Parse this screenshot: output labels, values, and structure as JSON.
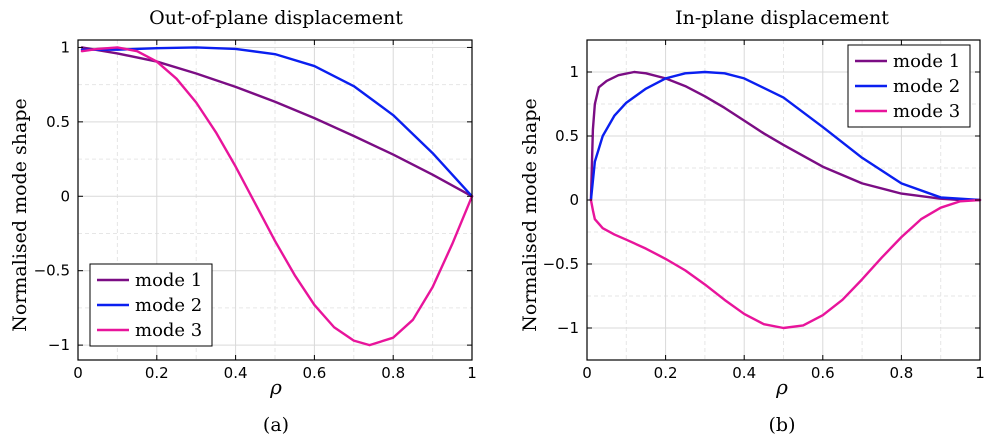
{
  "chart_data": [
    {
      "type": "line",
      "panel_label": "(a)",
      "title": "Out-of-plane displacement",
      "xlabel": "ρ",
      "ylabel": "Normalised mode shape",
      "xlim": [
        0,
        1
      ],
      "ylim": [
        -1.1,
        1.05
      ],
      "xticks": [
        0,
        0.2,
        0.4,
        0.6,
        0.8,
        1
      ],
      "xtick_labels": [
        "0",
        "0.2",
        "0.4",
        "0.6",
        "0.8",
        "1"
      ],
      "yticks": [
        -1,
        -0.5,
        0,
        0.5,
        1
      ],
      "ytick_labels": [
        "−1",
        "−0.5",
        "0",
        "0.5",
        "1"
      ],
      "grid": true,
      "legend_position": "bottom-left",
      "series": [
        {
          "name": "mode 1",
          "color": "#7b0d84",
          "x": [
            0.01,
            0.1,
            0.2,
            0.3,
            0.4,
            0.5,
            0.6,
            0.7,
            0.8,
            0.9,
            1.0
          ],
          "y": [
            1.0,
            0.96,
            0.905,
            0.825,
            0.735,
            0.635,
            0.525,
            0.405,
            0.28,
            0.145,
            0.0
          ]
        },
        {
          "name": "mode 2",
          "color": "#0a1ff0",
          "x": [
            0.01,
            0.1,
            0.2,
            0.3,
            0.4,
            0.5,
            0.6,
            0.7,
            0.8,
            0.9,
            1.0
          ],
          "y": [
            0.985,
            0.985,
            0.995,
            1.0,
            0.99,
            0.955,
            0.875,
            0.74,
            0.545,
            0.29,
            0.0
          ]
        },
        {
          "name": "mode 3",
          "color": "#e8149b",
          "x": [
            0.01,
            0.05,
            0.1,
            0.15,
            0.2,
            0.25,
            0.3,
            0.35,
            0.4,
            0.45,
            0.5,
            0.55,
            0.6,
            0.65,
            0.7,
            0.74,
            0.8,
            0.85,
            0.9,
            0.95,
            1.0
          ],
          "y": [
            0.975,
            0.99,
            1.0,
            0.975,
            0.905,
            0.79,
            0.63,
            0.43,
            0.2,
            -0.05,
            -0.3,
            -0.53,
            -0.73,
            -0.88,
            -0.97,
            -1.0,
            -0.95,
            -0.83,
            -0.61,
            -0.32,
            0.0
          ]
        }
      ]
    },
    {
      "type": "line",
      "panel_label": "(b)",
      "title": "In-plane displacement",
      "xlabel": "ρ",
      "ylabel": "Normalised mode shape",
      "xlim": [
        0,
        1
      ],
      "ylim": [
        -1.25,
        1.25
      ],
      "xticks": [
        0,
        0.2,
        0.4,
        0.6,
        0.8,
        1
      ],
      "xtick_labels": [
        "0",
        "0.2",
        "0.4",
        "0.6",
        "0.8",
        "1"
      ],
      "yticks": [
        -1,
        -0.5,
        0,
        0.5,
        1
      ],
      "ytick_labels": [
        "−1",
        "−0.5",
        "0",
        "0.5",
        "1"
      ],
      "grid": true,
      "legend_position": "top-right",
      "series": [
        {
          "name": "mode 1",
          "color": "#7b0d84",
          "x": [
            0.01,
            0.015,
            0.02,
            0.03,
            0.05,
            0.08,
            0.12,
            0.15,
            0.2,
            0.25,
            0.3,
            0.35,
            0.4,
            0.45,
            0.5,
            0.6,
            0.7,
            0.8,
            0.9,
            0.95,
            1.0
          ],
          "y": [
            0.0,
            0.55,
            0.75,
            0.88,
            0.93,
            0.975,
            1.0,
            0.99,
            0.95,
            0.89,
            0.81,
            0.72,
            0.62,
            0.52,
            0.43,
            0.26,
            0.13,
            0.05,
            0.01,
            0.0,
            0.0
          ]
        },
        {
          "name": "mode 2",
          "color": "#0a1ff0",
          "x": [
            0.01,
            0.02,
            0.04,
            0.07,
            0.1,
            0.15,
            0.2,
            0.25,
            0.3,
            0.35,
            0.4,
            0.5,
            0.6,
            0.7,
            0.8,
            0.9,
            1.0
          ],
          "y": [
            0.0,
            0.3,
            0.5,
            0.66,
            0.76,
            0.87,
            0.95,
            0.99,
            1.0,
            0.99,
            0.95,
            0.8,
            0.57,
            0.33,
            0.13,
            0.02,
            0.0
          ]
        },
        {
          "name": "mode 3",
          "color": "#e8149b",
          "x": [
            0.01,
            0.015,
            0.02,
            0.04,
            0.07,
            0.1,
            0.15,
            0.2,
            0.25,
            0.3,
            0.35,
            0.4,
            0.45,
            0.5,
            0.55,
            0.6,
            0.65,
            0.7,
            0.75,
            0.8,
            0.85,
            0.9,
            0.95,
            1.0
          ],
          "y": [
            0.0,
            -0.08,
            -0.15,
            -0.22,
            -0.27,
            -0.31,
            -0.38,
            -0.46,
            -0.55,
            -0.66,
            -0.78,
            -0.89,
            -0.97,
            -1.0,
            -0.98,
            -0.9,
            -0.78,
            -0.62,
            -0.45,
            -0.29,
            -0.15,
            -0.06,
            -0.01,
            0.0
          ]
        }
      ]
    }
  ]
}
